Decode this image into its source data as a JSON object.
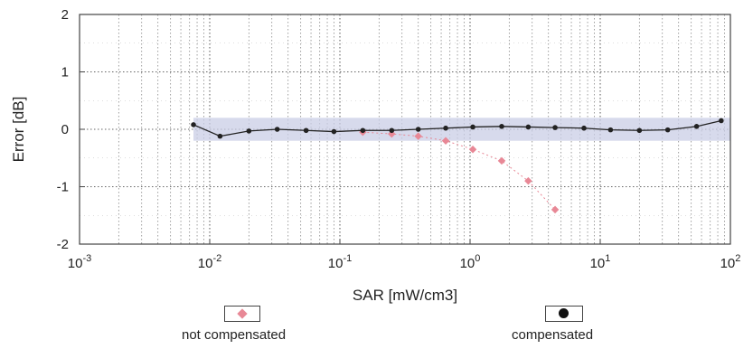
{
  "chart_data": {
    "type": "scatter",
    "title": "",
    "xlabel": "SAR [mW/cm3]",
    "ylabel": "Error [dB]",
    "x_scale": "log",
    "xlim": [
      0.001,
      100
    ],
    "ylim": [
      -2,
      2
    ],
    "grid": true,
    "x_ticks": [
      {
        "base": "10",
        "exp": "-3",
        "value": 0.001
      },
      {
        "base": "10",
        "exp": "-2",
        "value": 0.01
      },
      {
        "base": "10",
        "exp": "-1",
        "value": 0.1
      },
      {
        "base": "10",
        "exp": "0",
        "value": 1
      },
      {
        "base": "10",
        "exp": "1",
        "value": 10
      },
      {
        "base": "10",
        "exp": "2",
        "value": 100
      }
    ],
    "y_ticks": [
      "2",
      "1",
      "0",
      "-1",
      "-2"
    ],
    "y_tick_values": [
      2,
      1,
      0,
      -1,
      -2
    ],
    "uncertainty_band": [
      -0.2,
      0.2
    ],
    "band_color": "#c9cde6",
    "series": [
      {
        "name": "not compensated",
        "color": "#e88896",
        "marker": "diamond",
        "x": [
          0.15,
          0.25,
          0.4,
          0.65,
          1.05,
          1.75,
          2.8,
          4.5
        ],
        "y": [
          -0.05,
          -0.08,
          -0.12,
          -0.2,
          -0.35,
          -0.55,
          -0.9,
          -1.4
        ]
      },
      {
        "name": "compensated",
        "color": "#222222",
        "marker": "circle",
        "x": [
          0.0075,
          0.012,
          0.02,
          0.033,
          0.055,
          0.09,
          0.15,
          0.25,
          0.4,
          0.65,
          1.05,
          1.75,
          2.8,
          4.5,
          7.5,
          12,
          20,
          33,
          55,
          85
        ],
        "y": [
          0.08,
          -0.12,
          -0.03,
          0.0,
          -0.02,
          -0.04,
          -0.02,
          -0.02,
          0.0,
          0.02,
          0.04,
          0.05,
          0.04,
          0.03,
          0.02,
          -0.01,
          -0.02,
          -0.01,
          0.05,
          0.15
        ]
      }
    ],
    "legend_placement": "bottom"
  },
  "legend": {
    "not_compensated_label": "not compensated",
    "compensated_label": "compensated"
  }
}
